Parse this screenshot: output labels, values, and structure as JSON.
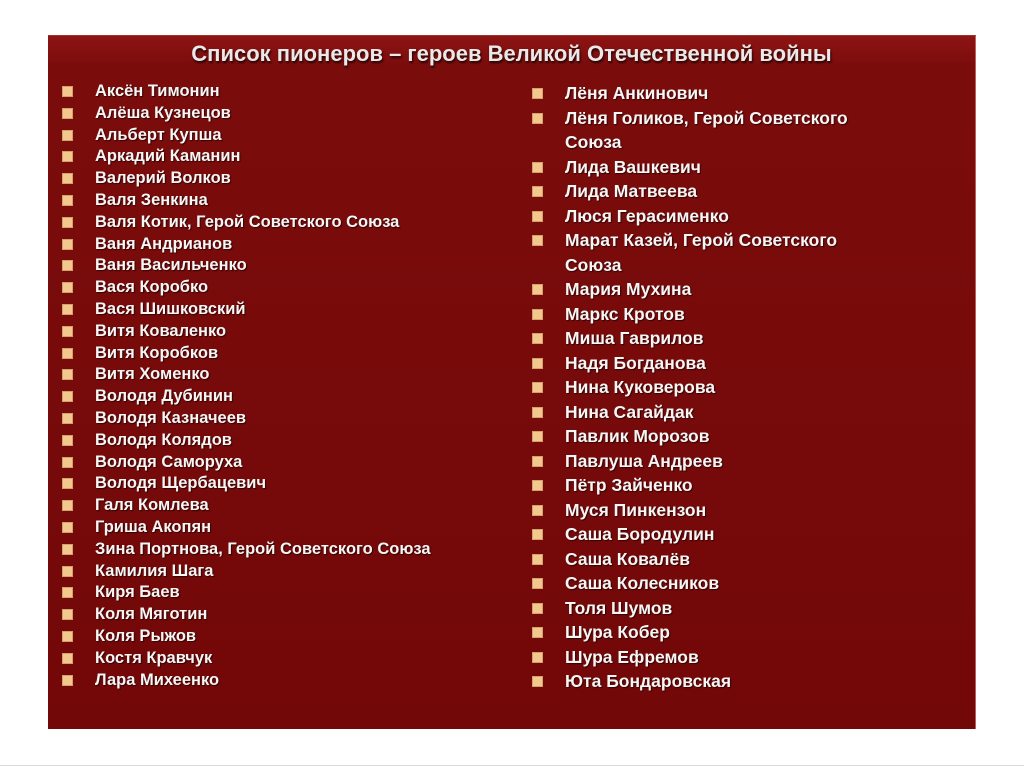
{
  "slide": {
    "title": "Список пионеров – героев Великой Отечественной войны",
    "bullet_icon": "square-bullet",
    "colors": {
      "page_background": "#ffffff",
      "slide_background": "#7b0c0c",
      "slide_background_top": "#8d1413",
      "bullet": "#f2c88e",
      "title_text": "#eae8e8",
      "item_text": "#f8f5f5"
    },
    "columns": {
      "left": [
        "Аксён Тимонин",
        "Алёша Кузнецов",
        "Альберт Купша",
        "Аркадий Каманин",
        "Валерий Волков",
        "Валя Зенкина",
        "Валя Котик, Герой Советского Союза",
        "Ваня Андрианов",
        "Ваня Васильченко",
        "Вася Коробко",
        "Вася Шишковский",
        "Витя Коваленко",
        "Витя Коробков",
        "Витя Хоменко",
        "Володя Дубинин",
        "Володя Казначеев",
        "Володя Колядов",
        "Володя Саморуха",
        "Володя Щербацевич",
        "Галя Комлева",
        "Гриша Акопян",
        "Зина Портнова, Герой Советского Союза",
        "Камилия Шага",
        "Киря Баев",
        "Коля Мяготин",
        "Коля Рыжов",
        "Костя Кравчук",
        "Лара Михеенко"
      ],
      "right": [
        "Лёня Анкинович",
        "Лёня Голиков, Герой Советского\nСоюза",
        "Лида Вашкевич",
        "Лида Матвеева",
        "Люся Герасименко",
        "Марат Казей, Герой Советского\nСоюза",
        "Мария Мухина",
        "Маркс Кротов",
        "Миша Гаврилов",
        "Надя Богданова",
        "Нина Куковерова",
        "Нина Сагайдак",
        "Павлик Морозов",
        "Павлуша Андреев",
        "Пётр Зайченко",
        "Муся Пинкензон",
        "Саша Бородулин",
        "Саша Ковалёв",
        "Саша Колесников",
        "Толя Шумов",
        "Шура Кобер",
        "Шура Ефремов",
        "Юта Бондаровская"
      ]
    }
  }
}
